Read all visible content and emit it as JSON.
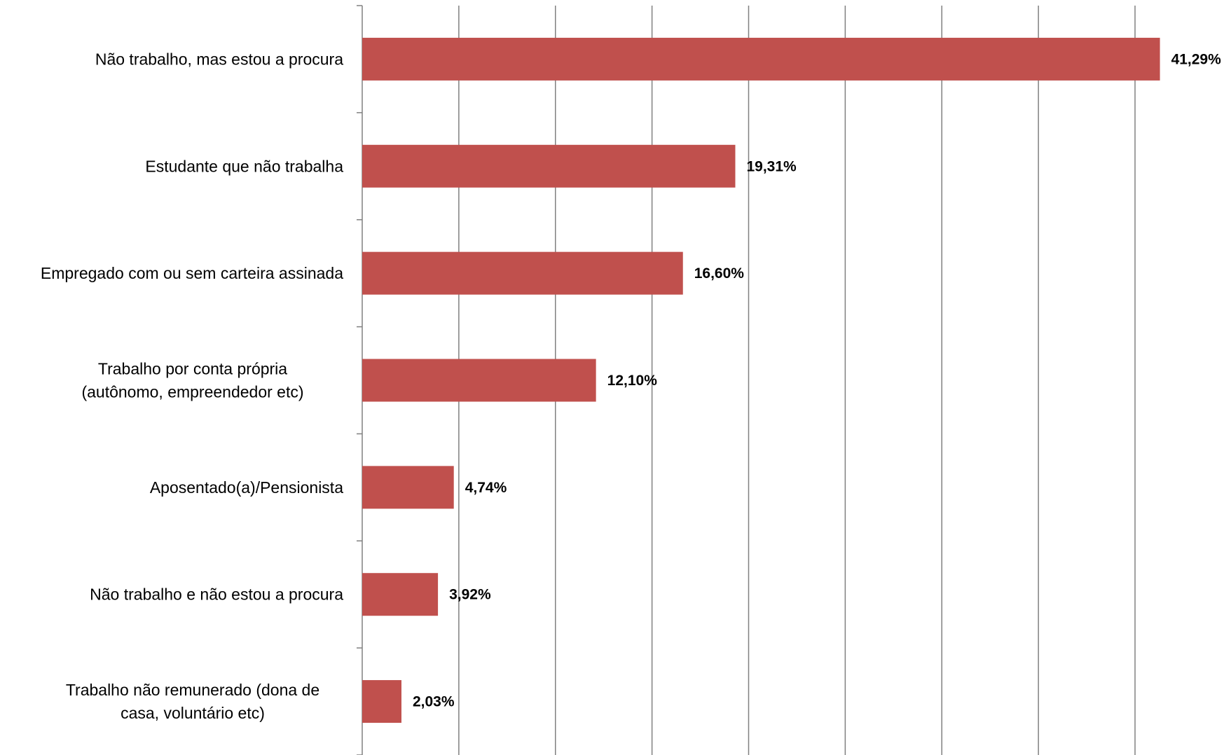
{
  "chart_data": {
    "type": "bar",
    "orientation": "horizontal",
    "categories": [
      "Não trabalho, mas estou a procura",
      "Estudante que não trabalha",
      "Empregado com ou sem carteira assinada",
      "Trabalho por conta própria (autônomo, empreendedor etc)",
      "Aposentado(a)/Pensionista",
      "Não trabalho e não estou a procura",
      "Trabalho não remunerado (dona de casa, voluntário etc)"
    ],
    "category_lines": [
      [
        "Não trabalho, mas estou a procura"
      ],
      [
        "Estudante que não trabalha"
      ],
      [
        "Empregado com ou sem carteira assinada"
      ],
      [
        "Trabalho por conta própria",
        "(autônomo, empreendedor etc)"
      ],
      [
        "Aposentado(a)/Pensionista"
      ],
      [
        "Não trabalho e não estou a procura"
      ],
      [
        "Trabalho não remunerado (dona de",
        "casa, voluntário etc)"
      ]
    ],
    "values": [
      41.29,
      19.31,
      16.6,
      12.1,
      4.74,
      3.92,
      2.03
    ],
    "value_labels": [
      "41,29%",
      "19,31%",
      "16,60%",
      "12,10%",
      "4,74%",
      "3,92%",
      "2,03%"
    ],
    "xlim": [
      0,
      45
    ],
    "grid_step": 5,
    "grid": true,
    "title": "",
    "xlabel": "",
    "ylabel": "",
    "bar_color": "#c0504d"
  }
}
